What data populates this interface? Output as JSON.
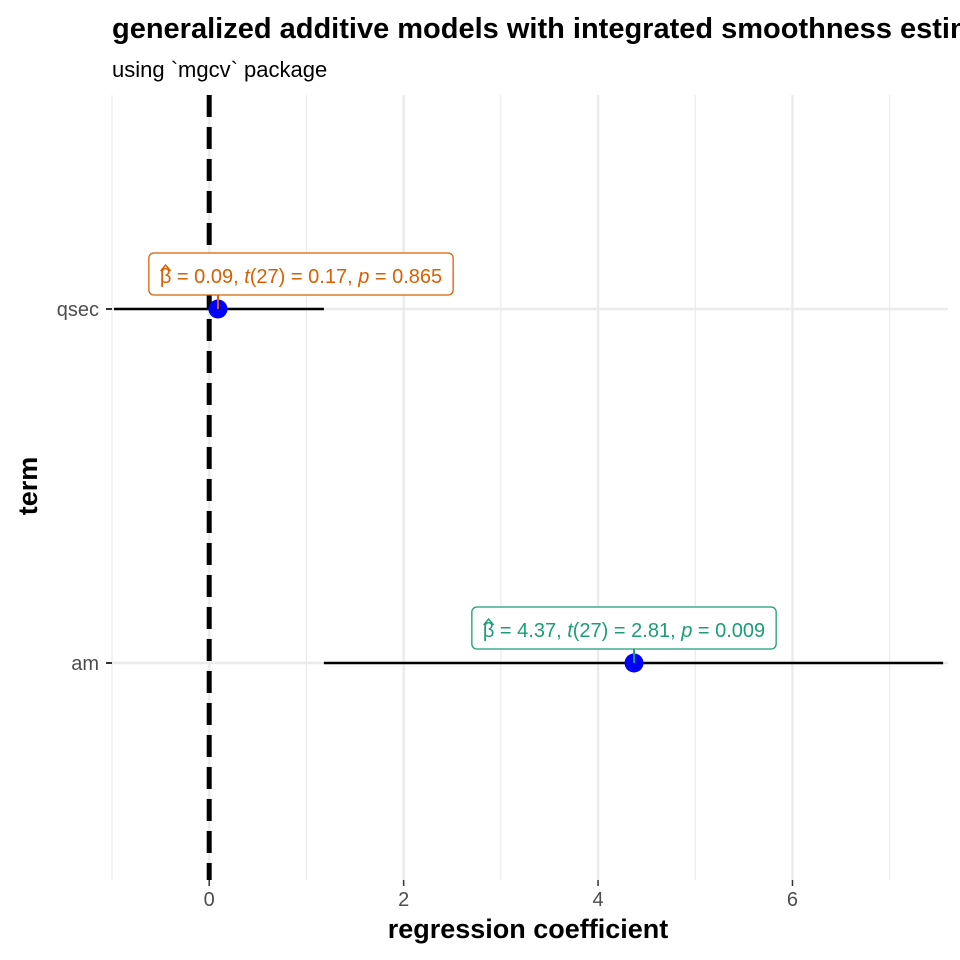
{
  "chart_data": {
    "type": "scatter",
    "title": "generalized additive models with integrated smoothness estimation",
    "subtitle": "using `mgcv` package",
    "xlabel": "regression coefficient",
    "ylabel": "term",
    "xlim": [
      -1.0,
      7.6
    ],
    "x_ticks": [
      0,
      2,
      4,
      6
    ],
    "x_minor_ticks": [
      -1,
      1,
      3,
      5,
      7
    ],
    "terms": [
      "qsec",
      "am"
    ],
    "reference_line": {
      "x": 0,
      "style": "dashed",
      "color": "#000000"
    },
    "point_color": "#0000ff",
    "grid": true,
    "legend": "none",
    "series": [
      {
        "term": "qsec",
        "estimate": 0.09,
        "conf_low": -0.98,
        "conf_high": 1.18,
        "label_color": "#D95F02",
        "label": {
          "beta_sym": "β",
          "beta_value": "= 0.09,",
          "t_sym": "t",
          "t_df": "(27)",
          "t_value": "= 0.17,",
          "p_sym": "p",
          "p_value": "= 0.865"
        }
      },
      {
        "term": "am",
        "estimate": 4.37,
        "conf_low": 1.18,
        "conf_high": 7.55,
        "label_color": "#1B9E77",
        "label": {
          "beta_sym": "β",
          "beta_value": "= 4.37,",
          "t_sym": "t",
          "t_df": "(27)",
          "t_value": "= 2.81,",
          "p_sym": "p",
          "p_value": "= 0.009"
        }
      }
    ]
  }
}
